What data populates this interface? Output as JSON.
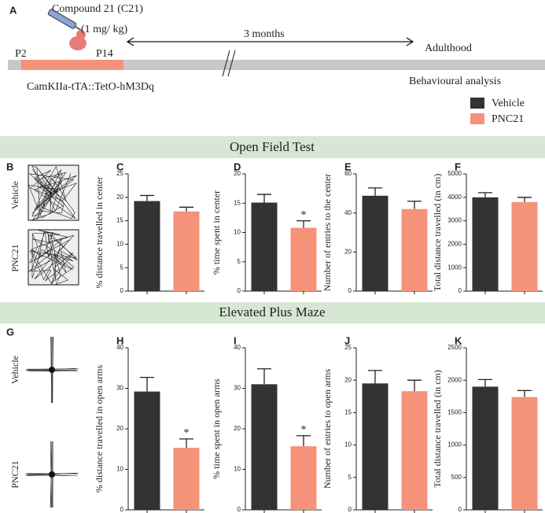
{
  "figure": {
    "panel_a": {
      "label": "A",
      "compound": "Compound 21 (C21)",
      "dose": "(1 mg/ kg)",
      "duration": "3 months",
      "end": "Adulthood",
      "start_age": "P2",
      "stop_age": "P14",
      "line": "CamKIIa-tTA::TetO-hM3Dq",
      "analysis": "Behavioural analysis"
    },
    "legend": [
      {
        "name": "Vehicle",
        "color": "#333333"
      },
      {
        "name": "PNC21",
        "color": "#f4937a"
      }
    ],
    "sections": [
      "Open Field Test",
      "Elevated Plus Maze"
    ],
    "panel_b": {
      "label": "B",
      "rows": [
        "Vehicle",
        "PNC21"
      ]
    },
    "panel_g": {
      "label": "G",
      "rows": [
        "Vehicle",
        "PNC21"
      ]
    }
  },
  "chart_data": [
    {
      "type": "bar",
      "panel": "C",
      "ylabel": "% distance travelled in center",
      "categories": [
        null,
        null
      ],
      "values": [
        19.2,
        17.0
      ],
      "errors": [
        1.2,
        0.9
      ],
      "significance": [
        null,
        null
      ],
      "ylim": [
        0,
        25
      ],
      "yticks": [
        0,
        5,
        10,
        15,
        20,
        25
      ]
    },
    {
      "type": "bar",
      "panel": "D",
      "ylabel": "% time spent in center",
      "categories": [
        null,
        null
      ],
      "values": [
        15.1,
        10.8
      ],
      "errors": [
        1.4,
        1.2
      ],
      "significance": [
        null,
        "*"
      ],
      "ylim": [
        0,
        20
      ],
      "yticks": [
        0,
        5,
        10,
        15,
        20
      ]
    },
    {
      "type": "bar",
      "panel": "E",
      "ylabel": "Number of entries to the center",
      "categories": [
        null,
        null
      ],
      "values": [
        48.8,
        42.0
      ],
      "errors": [
        4.0,
        4.0
      ],
      "significance": [
        null,
        null
      ],
      "ylim": [
        0,
        60
      ],
      "yticks": [
        0,
        20,
        40,
        60
      ]
    },
    {
      "type": "bar",
      "panel": "F",
      "ylabel": "Total distance travelled (in cm)",
      "categories": [
        null,
        null
      ],
      "values": [
        4000,
        3800
      ],
      "errors": [
        200,
        200
      ],
      "significance": [
        null,
        null
      ],
      "ylim": [
        0,
        5000
      ],
      "yticks": [
        0,
        1000,
        2000,
        3000,
        4000,
        5000
      ]
    },
    {
      "type": "bar",
      "panel": "H",
      "ylabel": "% distance travelled in open arms",
      "categories": [
        null,
        null
      ],
      "values": [
        29.2,
        15.3
      ],
      "errors": [
        3.5,
        2.2
      ],
      "significance": [
        null,
        "*"
      ],
      "ylim": [
        0,
        40
      ],
      "yticks": [
        0,
        10,
        20,
        30,
        40
      ]
    },
    {
      "type": "bar",
      "panel": "I",
      "ylabel": "% time spent in open arms",
      "categories": [
        null,
        null
      ],
      "values": [
        31.0,
        15.7
      ],
      "errors": [
        3.8,
        2.6
      ],
      "significance": [
        null,
        "*"
      ],
      "ylim": [
        0,
        40
      ],
      "yticks": [
        0,
        10,
        20,
        30,
        40
      ]
    },
    {
      "type": "bar",
      "panel": "J",
      "ylabel": "Number of entries to open arms",
      "categories": [
        null,
        null
      ],
      "values": [
        19.5,
        18.3
      ],
      "errors": [
        2.0,
        1.7
      ],
      "significance": [
        null,
        null
      ],
      "ylim": [
        0,
        25
      ],
      "yticks": [
        0,
        5,
        10,
        15,
        20,
        25
      ]
    },
    {
      "type": "bar",
      "panel": "K",
      "ylabel": "Total distance travelled (in cm)",
      "categories": [
        null,
        null
      ],
      "values": [
        1900,
        1740
      ],
      "errors": [
        110,
        100
      ],
      "significance": [
        null,
        null
      ],
      "ylim": [
        0,
        2500
      ],
      "yticks": [
        0,
        500,
        1000,
        1500,
        2000,
        2500
      ]
    }
  ]
}
